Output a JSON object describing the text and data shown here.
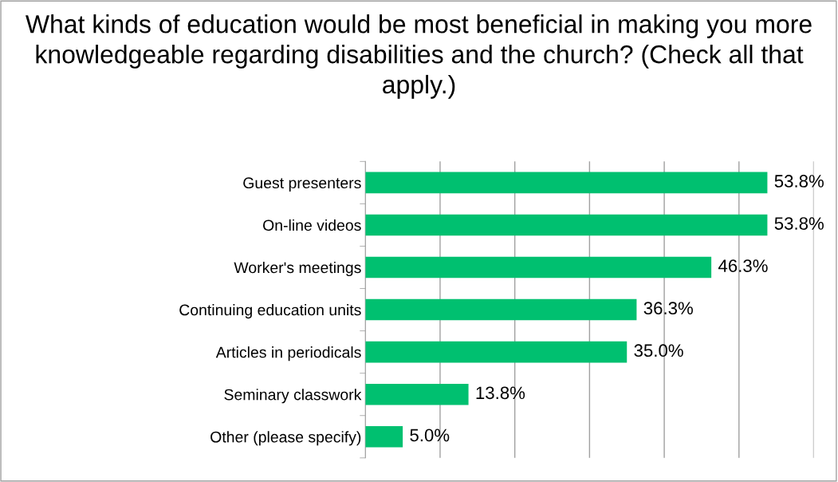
{
  "chart_data": {
    "type": "bar",
    "orientation": "horizontal",
    "title": "What kinds of education would be most beneficial in making you more knowledgeable regarding disabilities and the church? (Check all that apply.)",
    "categories": [
      "Guest presenters",
      "On-line videos",
      "Worker's meetings",
      "Continuing education units",
      "Articles in periodicals",
      "Seminary classwork",
      "Other (please specify)"
    ],
    "values": [
      53.8,
      53.8,
      46.3,
      36.3,
      35.0,
      13.8,
      5.0
    ],
    "value_labels": [
      "53.8%",
      "53.8%",
      "46.3%",
      "36.3%",
      "35.0%",
      "13.8%",
      "5.0%"
    ],
    "color": "#00c070",
    "xlim": [
      0,
      60
    ],
    "xticks": [
      {
        "value": 0,
        "label": null
      },
      {
        "value": 10,
        "label": null
      },
      {
        "value": 20,
        "label": null
      },
      {
        "value": 30,
        "label": null
      },
      {
        "value": 40,
        "label": null
      },
      {
        "value": 50,
        "label": null
      },
      {
        "value": 60,
        "label": null
      }
    ],
    "grid": "x",
    "tick_labels": "y",
    "legend": false
  }
}
